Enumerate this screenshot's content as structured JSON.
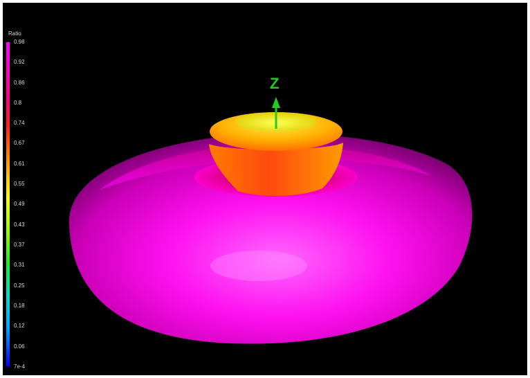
{
  "legend": {
    "title": "Ratio",
    "ticks": [
      "0.98",
      "0.92",
      "0.86",
      "0.8",
      "0.74",
      "0.67",
      "0.61",
      "0.55",
      "0.49",
      "0.43",
      "0.37",
      "0.31",
      "0.25",
      "0.18",
      "0.12",
      "0.06",
      "7e-4"
    ]
  },
  "axis": {
    "label": "Z"
  },
  "colors": {
    "torus": "#ff00ff",
    "lobe_outer": "#ff8800",
    "lobe_inner": "#ffff33",
    "axis": "#22cc22",
    "background": "#000000"
  }
}
